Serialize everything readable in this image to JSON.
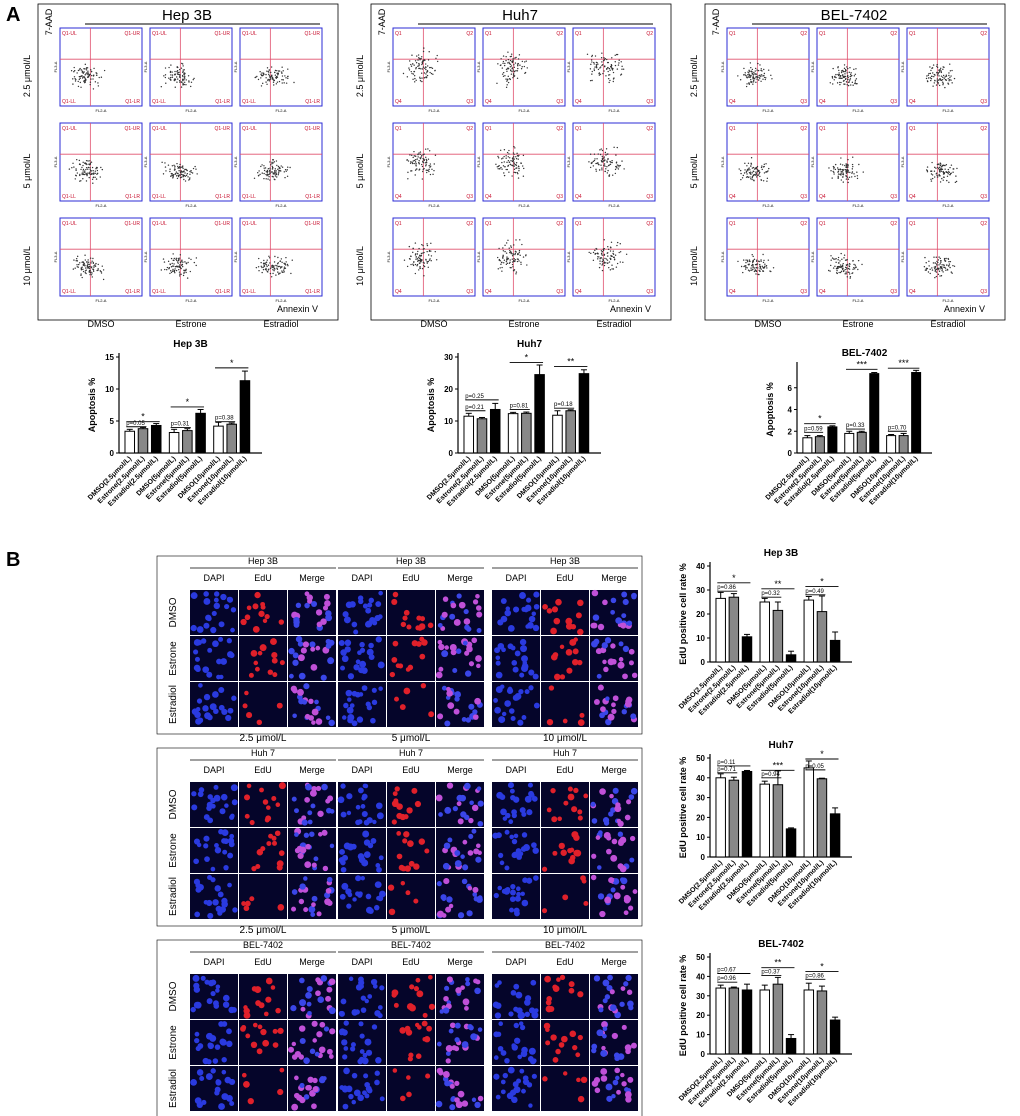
{
  "panels": {
    "a": "A",
    "b": "B"
  },
  "flow": {
    "lines": [
      {
        "name": "Hep 3B",
        "ylabel_top": "7-AAD",
        "xlabel_right": "Annexin V",
        "quad_labels": [
          "Q1-UL",
          "Q1-UR",
          "Q1-LL",
          "Q1-LR"
        ]
      },
      {
        "name": "Huh7",
        "ylabel_top": "7-AAD",
        "xlabel_right": "Annexin V",
        "quad_labels": [
          "Q1",
          "Q2",
          "Q4",
          "Q3"
        ]
      },
      {
        "name": "BEL-7402",
        "ylabel_top": "7-AAD",
        "xlabel_right": "Annexin V",
        "quad_labels": [
          "Q1",
          "Q2",
          "Q4",
          "Q3"
        ]
      }
    ],
    "rows": [
      "2.5 μmol/L",
      "5 μmol/L",
      "10 μmol/L"
    ],
    "cols": [
      "DMSO",
      "Estrone",
      "Estradiol"
    ],
    "axis_x": "FL2-A",
    "axis_y": "FL3-A"
  },
  "apoptosis_categories": [
    "DMSO(2.5μmol/L)",
    "Estrone(2.5μmol/L)",
    "Estradiol(2.5μmol/L)",
    "DMSO(5μmol/L)",
    "Estrone(5μmol/L)",
    "Estradiol(5μmol/L)",
    "DMSO(10μmol/L)",
    "Estrone(10μmol/L)",
    "Estradiol(10μmol/L)"
  ],
  "edu_categories": [
    "DMSO(2.5μmol/L)",
    "Estrone(2.5μmol/L)",
    "Estradiol(2.5μmol/L)",
    "DMSO(5μmol/L)",
    "Estrone(5μmol/L)",
    "Estradiol(5μmol/L)",
    "DMSO(10μmol/L)",
    "Estrone(10μmol/L)",
    "Estradiol(10μmol/L)"
  ],
  "bar_colors": [
    "#ffffff",
    "#888888",
    "#000000"
  ],
  "chart_data": [
    {
      "type": "bar",
      "title": "Hep 3B",
      "ylabel": "Apoptosis %",
      "ylim": [
        0,
        15
      ],
      "yticks": [
        0,
        5,
        10,
        15
      ],
      "values": [
        3.4,
        3.8,
        4.3,
        3.2,
        3.5,
        6.2,
        4.2,
        4.5,
        11.3
      ],
      "errors": [
        0.3,
        0.2,
        0.3,
        0.5,
        0.3,
        0.6,
        0.6,
        0.2,
        1.5
      ],
      "annotations": [
        {
          "text": "p=0.05",
          "from": 0,
          "to": 1,
          "y": 4.1
        },
        {
          "text": "*",
          "from": 0,
          "to": 2,
          "y": 4.9
        },
        {
          "text": "p=0.31",
          "from": 3,
          "to": 4,
          "y": 4.0
        },
        {
          "text": "*",
          "from": 3,
          "to": 5,
          "y": 7.2
        },
        {
          "text": "p=0.38",
          "from": 6,
          "to": 7,
          "y": 4.9
        },
        {
          "text": "*",
          "from": 6,
          "to": 8,
          "y": 13.3
        }
      ]
    },
    {
      "type": "bar",
      "title": "Huh7",
      "ylabel": "Apoptosis %",
      "ylim": [
        0,
        30
      ],
      "yticks": [
        0,
        10,
        20,
        30
      ],
      "values": [
        11.5,
        10.7,
        13.6,
        12.3,
        12.4,
        24.5,
        11.8,
        13.2,
        24.8
      ],
      "errors": [
        0.9,
        0.4,
        1.9,
        0.4,
        0.4,
        3.0,
        1.4,
        0.3,
        1.2
      ],
      "annotations": [
        {
          "text": "p=0.21",
          "from": 0,
          "to": 1,
          "y": 13.2
        },
        {
          "text": "p=0.25",
          "from": 0,
          "to": 2,
          "y": 16.6
        },
        {
          "text": "p=0.81",
          "from": 3,
          "to": 4,
          "y": 13.6
        },
        {
          "text": "*",
          "from": 3,
          "to": 5,
          "y": 28.3
        },
        {
          "text": "p=0.18",
          "from": 6,
          "to": 7,
          "y": 14.0
        },
        {
          "text": "**",
          "from": 6,
          "to": 8,
          "y": 27.0
        }
      ]
    },
    {
      "type": "bar",
      "title": "BEL-7402",
      "ylabel": "Apoptosis %",
      "ylim": [
        0,
        8
      ],
      "yticks": [
        0,
        2,
        4,
        6
      ],
      "values": [
        1.4,
        1.5,
        2.4,
        1.8,
        1.9,
        7.3,
        1.6,
        1.6,
        7.4
      ],
      "errors": [
        0.2,
        0.1,
        0.1,
        0.2,
        0.1,
        0.1,
        0.1,
        0.2,
        0.2
      ],
      "annotations": [
        {
          "text": "p=0.59",
          "from": 0,
          "to": 1,
          "y": 1.9
        },
        {
          "text": "*",
          "from": 0,
          "to": 2,
          "y": 2.7
        },
        {
          "text": "p=0.33",
          "from": 3,
          "to": 4,
          "y": 2.2
        },
        {
          "text": "***",
          "from": 3,
          "to": 5,
          "y": 7.7
        },
        {
          "text": "p=0.70",
          "from": 6,
          "to": 7,
          "y": 2.0
        },
        {
          "text": "***",
          "from": 6,
          "to": 8,
          "y": 7.8
        }
      ]
    },
    {
      "type": "bar",
      "title": "Hep 3B",
      "ylabel": "EdU positive cell rate %",
      "ylim": [
        0,
        40
      ],
      "yticks": [
        0,
        10,
        20,
        30,
        40
      ],
      "values": [
        26.5,
        27.0,
        10.5,
        25.0,
        21.5,
        3.0,
        25.8,
        21.0,
        9.0
      ],
      "errors": [
        2.5,
        1.5,
        1.0,
        1.5,
        3.5,
        1.5,
        1.5,
        6.5,
        3.5
      ],
      "annotations": [
        {
          "text": "p=0.86",
          "from": 0,
          "to": 1,
          "y": 29.5
        },
        {
          "text": "*",
          "from": 0,
          "to": 2,
          "y": 33.0
        },
        {
          "text": "p=0.32",
          "from": 3,
          "to": 4,
          "y": 27.0
        },
        {
          "text": "**",
          "from": 3,
          "to": 5,
          "y": 30.5
        },
        {
          "text": "p=0.49",
          "from": 6,
          "to": 7,
          "y": 28.0
        },
        {
          "text": "*",
          "from": 6,
          "to": 8,
          "y": 31.5
        }
      ]
    },
    {
      "type": "bar",
      "title": "Huh7",
      "ylabel": "EdU positive cell rate %",
      "ylim": [
        0,
        50
      ],
      "yticks": [
        0,
        10,
        20,
        30,
        40,
        50
      ],
      "values": [
        40.0,
        38.8,
        43.2,
        36.8,
        36.5,
        14.2,
        45.0,
        39.5,
        21.8
      ],
      "errors": [
        2.0,
        1.5,
        0.5,
        1.5,
        7.0,
        0.5,
        3.5,
        0.3,
        3.0
      ],
      "annotations": [
        {
          "text": "p=0.71",
          "from": 0,
          "to": 1,
          "y": 42.5
        },
        {
          "text": "p=0.11",
          "from": 0,
          "to": 2,
          "y": 46.0
        },
        {
          "text": "p=0.94",
          "from": 3,
          "to": 4,
          "y": 40.0
        },
        {
          "text": "***",
          "from": 3,
          "to": 5,
          "y": 43.8
        },
        {
          "text": "p=0.05",
          "from": 6,
          "to": 7,
          "y": 44.0
        },
        {
          "text": "*",
          "from": 6,
          "to": 8,
          "y": 49.5
        }
      ]
    },
    {
      "type": "bar",
      "title": "BEL-7402",
      "ylabel": "EdU positive cell rate %",
      "ylim": [
        0,
        50
      ],
      "yticks": [
        0,
        10,
        20,
        30,
        40,
        50
      ],
      "values": [
        34.0,
        34.0,
        33.0,
        33.0,
        36.0,
        8.0,
        33.0,
        32.5,
        17.5
      ],
      "errors": [
        1.5,
        0.5,
        3.0,
        2.5,
        3.5,
        2.0,
        3.5,
        2.5,
        1.5
      ],
      "annotations": [
        {
          "text": "p=0.96",
          "from": 0,
          "to": 1,
          "y": 37.0
        },
        {
          "text": "p=0.67",
          "from": 0,
          "to": 2,
          "y": 41.5
        },
        {
          "text": "p=0.37",
          "from": 3,
          "to": 4,
          "y": 40.5
        },
        {
          "text": "**",
          "from": 3,
          "to": 5,
          "y": 44.5
        },
        {
          "text": "p=0.86",
          "from": 6,
          "to": 7,
          "y": 38.5
        },
        {
          "text": "*",
          "from": 6,
          "to": 8,
          "y": 42.5
        }
      ]
    }
  ],
  "edu": {
    "channels": [
      "DAPI",
      "EdU",
      "Merge"
    ],
    "rows": [
      "DMSO",
      "Estrone",
      "Estradiol"
    ],
    "groups": [
      {
        "title": "Hep 3B",
        "sub": [
          "Hep 3B",
          "Hep 3B",
          "Hep 3B"
        ]
      },
      {
        "title": "Huh 7",
        "sub": [
          "Huh 7",
          "Huh 7",
          "Huh 7"
        ]
      },
      {
        "title": "BEL-7402",
        "sub": [
          "BEL-7402",
          "BEL-7402",
          "BEL-7402"
        ]
      }
    ],
    "conc": [
      "2.5 μmol/L",
      "5 μmol/L",
      "10 μmol/L"
    ]
  }
}
